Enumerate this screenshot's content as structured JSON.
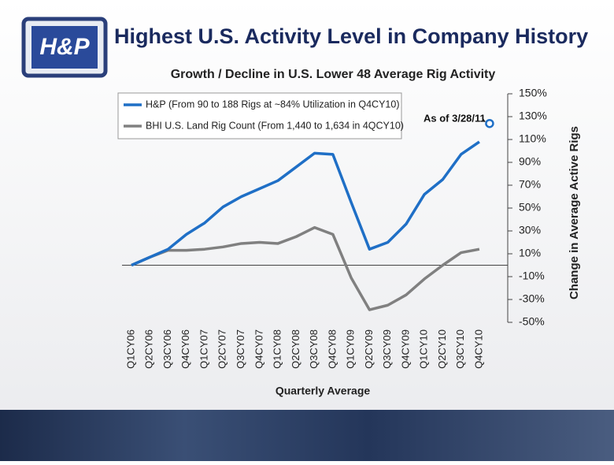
{
  "header": {
    "title": "Highest U.S. Activity Level in Company History",
    "logo_text": "H&P"
  },
  "chart_data": {
    "type": "line",
    "title": "Growth / Decline in U.S. Lower 48 Average Rig Activity",
    "x_label": "Quarterly Average",
    "y_label": "Change in Average Active Rigs",
    "categories": [
      "Q1CY06",
      "Q2CY06",
      "Q3CY06",
      "Q4CY06",
      "Q1CY07",
      "Q2CY07",
      "Q3CY07",
      "Q4CY07",
      "Q1CY08",
      "Q2CY08",
      "Q3CY08",
      "Q4CY08",
      "Q1CY09",
      "Q2CY09",
      "Q3CY09",
      "Q4CY09",
      "Q1CY10",
      "Q2CY10",
      "Q3CY10",
      "Q4CY10"
    ],
    "series": [
      {
        "name": "H&P (From 90 to 188 Rigs at ~84% Utilization in Q4CY10)",
        "color": "#1f6fc6",
        "values": [
          0,
          7,
          14,
          27,
          37,
          51,
          60,
          67,
          74,
          86,
          98,
          97,
          55,
          14,
          20,
          36,
          62,
          75,
          97,
          108
        ]
      },
      {
        "name": "BHI U.S. Land Rig Count (From 1,440 to 1,634 in 4QCY10)",
        "color": "#808080",
        "values": [
          0,
          7,
          13,
          13,
          14,
          16,
          19,
          20,
          19,
          25,
          33,
          27,
          -11,
          -39,
          -35,
          -26,
          -12,
          0,
          11,
          14
        ]
      }
    ],
    "annotation": {
      "text": "As of 3/28/11",
      "value": 124
    },
    "ylim": [
      -50,
      150
    ],
    "yticks": [
      {
        "value": 150,
        "label": "150%"
      },
      {
        "value": 130,
        "label": "130%"
      },
      {
        "value": 110,
        "label": "110%"
      },
      {
        "value": 90,
        "label": "90%"
      },
      {
        "value": 70,
        "label": "70%"
      },
      {
        "value": 50,
        "label": "50%"
      },
      {
        "value": 30,
        "label": "30%"
      },
      {
        "value": 10,
        "label": "10%"
      },
      {
        "value": -10,
        "label": "-10%"
      },
      {
        "value": -30,
        "label": "-30%"
      },
      {
        "value": -50,
        "label": "-50%"
      }
    ],
    "legend": "upper left"
  }
}
